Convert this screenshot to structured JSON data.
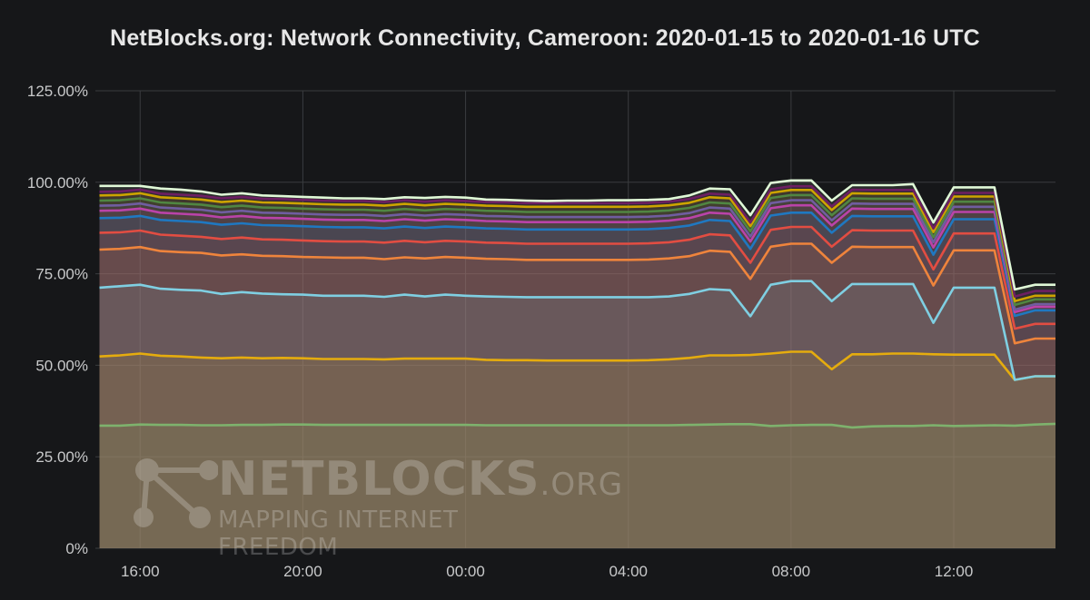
{
  "chart_data": {
    "type": "area",
    "title": "NetBlocks.org: Network Connectivity, Cameroon: 2020-01-15 to 2020-01-16 UTC",
    "xlabel": "",
    "ylabel": "",
    "x": [
      15.0,
      15.5,
      16.0,
      16.5,
      17.0,
      17.5,
      18.0,
      18.5,
      19.0,
      19.5,
      20.0,
      20.5,
      21.0,
      21.5,
      22.0,
      22.5,
      23.0,
      23.5,
      24.0,
      24.5,
      25.0,
      25.5,
      26.0,
      26.5,
      27.0,
      27.5,
      28.0,
      28.5,
      29.0,
      29.5,
      30.0,
      30.5,
      31.0,
      31.5,
      32.0,
      32.5,
      33.0,
      33.5,
      34.0,
      34.5,
      35.0,
      35.5,
      36.0,
      36.5,
      37.0,
      37.5,
      38.0,
      38.5
    ],
    "x_ticks": [
      16,
      20,
      24,
      28,
      32,
      36
    ],
    "x_tick_labels": [
      "16:00",
      "20:00",
      "00:00",
      "04:00",
      "08:00",
      "12:00"
    ],
    "xlim": [
      14.9,
      38.5
    ],
    "ylim": [
      0,
      125
    ],
    "y_ticks": [
      0,
      25,
      50,
      75,
      100,
      125
    ],
    "y_tick_labels": [
      "0%",
      "25.00%",
      "50.00%",
      "75.00%",
      "100.00%",
      "125.00%"
    ],
    "grid": true,
    "legend": "none",
    "series": [
      {
        "color": "#7eb26d",
        "values": [
          33.5,
          33.5,
          33.8,
          33.7,
          33.7,
          33.6,
          33.6,
          33.7,
          33.7,
          33.8,
          33.8,
          33.7,
          33.7,
          33.7,
          33.7,
          33.7,
          33.7,
          33.7,
          33.7,
          33.6,
          33.6,
          33.6,
          33.6,
          33.6,
          33.6,
          33.6,
          33.6,
          33.6,
          33.6,
          33.7,
          33.8,
          33.9,
          33.9,
          33.4,
          33.6,
          33.7,
          33.7,
          33.0,
          33.3,
          33.4,
          33.4,
          33.6,
          33.4,
          33.5,
          33.6,
          33.5,
          33.8,
          34.0
        ]
      },
      {
        "color": "#e5ac0e",
        "values": [
          52.4,
          52.7,
          53.2,
          52.6,
          52.4,
          52.1,
          51.9,
          52.1,
          51.9,
          52.0,
          51.9,
          51.7,
          51.7,
          51.7,
          51.6,
          51.8,
          51.8,
          51.8,
          51.8,
          51.5,
          51.4,
          51.4,
          51.3,
          51.3,
          51.3,
          51.3,
          51.3,
          51.4,
          51.6,
          52.0,
          52.7,
          52.7,
          52.8,
          53.2,
          53.7,
          53.7,
          48.9,
          53.0,
          53.0,
          53.2,
          53.2,
          53.0,
          52.9,
          52.9,
          52.9,
          46.0,
          47.0,
          47.0
        ]
      },
      {
        "color": "#7fcfe2",
        "values": [
          71.2,
          71.6,
          72.0,
          70.9,
          70.6,
          70.4,
          69.5,
          70.0,
          69.6,
          69.4,
          69.3,
          69.0,
          69.0,
          69.0,
          68.7,
          69.3,
          68.8,
          69.3,
          69.0,
          68.8,
          68.7,
          68.6,
          68.6,
          68.6,
          68.6,
          68.6,
          68.6,
          68.6,
          68.8,
          69.5,
          70.8,
          70.5,
          63.4,
          72.0,
          73.0,
          73.0,
          67.5,
          72.2,
          72.2,
          72.2,
          72.2,
          61.6,
          71.2,
          71.2,
          71.2,
          46.0,
          47.0,
          47.0
        ]
      },
      {
        "color": "#ef843c",
        "values": [
          81.6,
          81.8,
          82.3,
          81.2,
          80.9,
          80.7,
          80.0,
          80.3,
          79.9,
          79.8,
          79.6,
          79.5,
          79.4,
          79.4,
          79.0,
          79.5,
          79.2,
          79.6,
          79.4,
          79.1,
          79.0,
          78.8,
          78.8,
          78.8,
          78.8,
          78.8,
          78.8,
          78.9,
          79.2,
          79.8,
          81.3,
          81.0,
          73.6,
          82.4,
          83.2,
          83.2,
          78.0,
          82.4,
          82.3,
          82.3,
          82.3,
          71.8,
          81.4,
          81.4,
          81.4,
          56.0,
          57.3,
          57.3
        ]
      },
      {
        "color": "#e24d42",
        "values": [
          86.2,
          86.3,
          86.8,
          85.7,
          85.4,
          85.1,
          84.5,
          84.9,
          84.4,
          84.3,
          84.1,
          83.9,
          83.8,
          83.8,
          83.5,
          84.0,
          83.6,
          84.0,
          83.8,
          83.5,
          83.4,
          83.2,
          83.2,
          83.2,
          83.2,
          83.2,
          83.2,
          83.3,
          83.6,
          84.3,
          85.8,
          85.5,
          78.0,
          87.0,
          87.8,
          87.8,
          82.4,
          86.9,
          86.8,
          86.8,
          86.8,
          76.2,
          86.0,
          86.0,
          86.0,
          60.0,
          61.3,
          61.3
        ]
      },
      {
        "color": "#1f78c1",
        "values": [
          90.2,
          90.3,
          90.8,
          89.7,
          89.4,
          89.1,
          88.4,
          88.8,
          88.3,
          88.2,
          88.0,
          87.8,
          87.7,
          87.7,
          87.4,
          87.9,
          87.5,
          87.9,
          87.7,
          87.4,
          87.3,
          87.1,
          87.1,
          87.1,
          87.1,
          87.1,
          87.1,
          87.2,
          87.5,
          88.2,
          89.7,
          89.4,
          81.8,
          90.9,
          91.7,
          91.7,
          86.2,
          90.8,
          90.7,
          90.7,
          90.7,
          80.2,
          89.9,
          89.9,
          89.9,
          63.5,
          65.0,
          65.0
        ]
      },
      {
        "color": "#ba43a9",
        "values": [
          92.2,
          92.3,
          92.8,
          91.7,
          91.4,
          91.1,
          90.4,
          90.8,
          90.3,
          90.2,
          90.0,
          89.8,
          89.7,
          89.7,
          89.4,
          89.9,
          89.5,
          89.9,
          89.7,
          89.4,
          89.3,
          89.1,
          89.1,
          89.1,
          89.1,
          89.1,
          89.1,
          89.2,
          89.5,
          90.2,
          91.7,
          91.4,
          83.8,
          92.9,
          93.7,
          93.7,
          88.2,
          92.8,
          92.7,
          92.7,
          92.7,
          82.2,
          91.9,
          91.9,
          91.9,
          64.5,
          66.0,
          66.0
        ]
      },
      {
        "color": "#705da0",
        "values": [
          93.6,
          93.7,
          94.2,
          93.1,
          92.8,
          92.5,
          91.8,
          92.2,
          91.7,
          91.6,
          91.4,
          91.2,
          91.1,
          91.1,
          90.8,
          91.3,
          90.9,
          91.3,
          91.1,
          90.8,
          90.7,
          90.5,
          90.5,
          90.5,
          90.5,
          90.5,
          90.5,
          90.6,
          90.9,
          91.6,
          93.1,
          92.8,
          85.2,
          94.3,
          95.1,
          95.1,
          89.6,
          94.2,
          94.1,
          94.1,
          94.1,
          83.6,
          93.3,
          93.3,
          93.3,
          65.2,
          66.7,
          66.7
        ]
      },
      {
        "color": "#508642",
        "values": [
          95.0,
          95.1,
          95.6,
          94.5,
          94.2,
          93.9,
          93.2,
          93.6,
          93.1,
          93.0,
          92.8,
          92.6,
          92.5,
          92.5,
          92.2,
          92.7,
          92.3,
          92.7,
          92.5,
          92.2,
          92.1,
          91.9,
          91.9,
          91.9,
          91.9,
          91.9,
          91.9,
          92.0,
          92.3,
          93.0,
          94.5,
          94.2,
          86.6,
          95.7,
          96.5,
          96.5,
          91.0,
          95.6,
          95.5,
          95.5,
          95.5,
          85.0,
          94.7,
          94.7,
          94.7,
          66.5,
          68.0,
          68.0
        ]
      },
      {
        "color": "#cca300",
        "values": [
          96.4,
          96.5,
          97.0,
          95.9,
          95.6,
          95.3,
          94.6,
          95.0,
          94.5,
          94.4,
          94.2,
          94.0,
          93.9,
          93.9,
          93.6,
          94.1,
          93.7,
          94.1,
          93.9,
          93.6,
          93.5,
          93.3,
          93.3,
          93.3,
          93.3,
          93.3,
          93.3,
          93.4,
          93.7,
          94.4,
          95.9,
          95.6,
          88.0,
          97.1,
          97.9,
          97.9,
          92.4,
          97.0,
          96.9,
          96.9,
          96.9,
          86.4,
          96.1,
          96.1,
          96.1,
          67.5,
          69.0,
          69.0
        ]
      },
      {
        "color": "#6d1f62",
        "values": [
          97.4,
          97.5,
          98.0,
          96.9,
          96.6,
          96.3,
          95.6,
          96.0,
          95.5,
          95.4,
          95.2,
          95.0,
          94.9,
          94.9,
          94.6,
          95.1,
          94.7,
          95.1,
          94.9,
          94.6,
          94.5,
          94.3,
          94.3,
          94.3,
          94.3,
          94.3,
          94.3,
          94.4,
          94.7,
          95.4,
          96.9,
          96.6,
          89.0,
          98.1,
          98.9,
          98.9,
          93.4,
          98.0,
          97.9,
          97.9,
          97.9,
          87.4,
          97.1,
          97.1,
          97.1,
          68.8,
          70.3,
          70.3
        ]
      },
      {
        "color": "#e0f9d7",
        "values": [
          99.0,
          99.0,
          99.0,
          98.3,
          98.0,
          97.5,
          96.6,
          97.0,
          96.4,
          96.2,
          96.0,
          95.8,
          95.6,
          95.6,
          95.4,
          95.9,
          95.7,
          96.0,
          95.8,
          95.3,
          95.2,
          95.0,
          94.9,
          95.0,
          95.0,
          95.1,
          95.1,
          95.2,
          95.4,
          96.4,
          98.3,
          98.1,
          91.0,
          99.8,
          100.5,
          100.5,
          95.0,
          99.2,
          99.2,
          99.2,
          99.5,
          89.0,
          98.6,
          98.6,
          98.6,
          70.7,
          72.0,
          72.0
        ]
      }
    ]
  },
  "watermark": {
    "brand": "NETBLOCKS",
    "brand_suffix": ".ORG",
    "tagline": "MAPPING INTERNET FREEDOM"
  }
}
